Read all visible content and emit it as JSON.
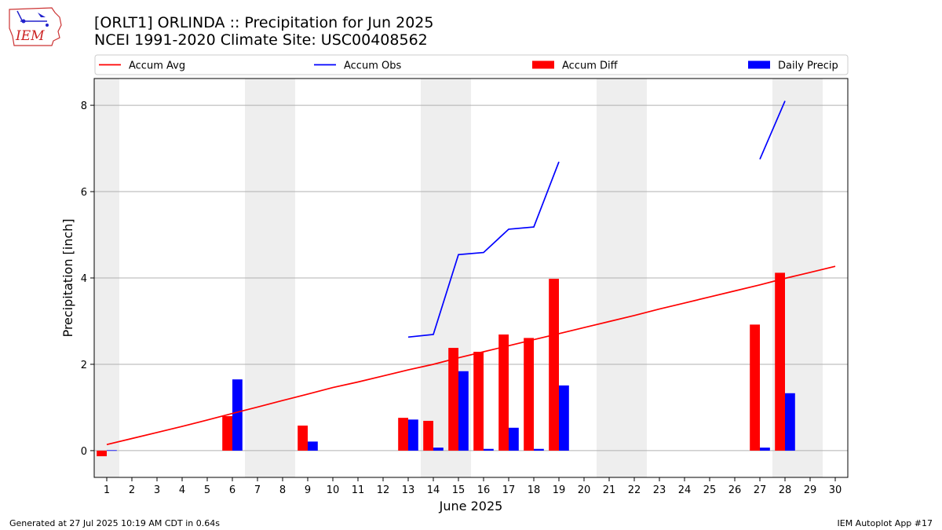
{
  "header": {
    "title_line1": "[ORLT1] ORLINDA :: Precipitation for Jun 2025",
    "title_line2": "NCEI 1991-2020 Climate Site: USC00408562"
  },
  "logo": {
    "text": "IEM",
    "icon": "iem-iowa-logo-icon"
  },
  "footer": {
    "generated": "Generated at 27 Jul 2025 10:19 AM CDT in 0.64s",
    "app": "IEM Autoplot App #17"
  },
  "chart_data": {
    "type": "bar",
    "xlabel": "June 2025",
    "ylabel": "Precipitation [inch]",
    "xlim": [
      0.5,
      30.5
    ],
    "ylim": [
      -0.62,
      8.62
    ],
    "x_ticks": [
      1,
      2,
      3,
      4,
      5,
      6,
      7,
      8,
      9,
      10,
      11,
      12,
      13,
      14,
      15,
      16,
      17,
      18,
      19,
      20,
      21,
      22,
      23,
      24,
      25,
      26,
      27,
      28,
      29,
      30
    ],
    "y_ticks": [
      0,
      2,
      4,
      6,
      8
    ],
    "grid": "y",
    "weekend_shading": [
      [
        0.5,
        1.5
      ],
      [
        6.5,
        8.5
      ],
      [
        13.5,
        15.5
      ],
      [
        20.5,
        22.5
      ],
      [
        27.5,
        29.5
      ]
    ],
    "legend": {
      "placement": "top",
      "ncol": 4
    },
    "colors": {
      "accum_avg": "#ff0000",
      "accum_obs": "#0000ff",
      "accum_diff": "#ff0000",
      "daily_precip": "#0000ff",
      "shade": "#eeeeee",
      "grid": "#b0b0b0"
    },
    "series": [
      {
        "name": "Accum Avg",
        "kind": "line",
        "x": [
          1,
          2,
          3,
          4,
          5,
          6,
          7,
          8,
          9,
          10,
          11,
          12,
          13,
          14,
          15,
          16,
          17,
          18,
          19,
          20,
          21,
          22,
          23,
          24,
          25,
          26,
          27,
          28,
          29,
          30
        ],
        "values": [
          0.14,
          0.28,
          0.42,
          0.56,
          0.71,
          0.86,
          1.01,
          1.16,
          1.31,
          1.46,
          1.59,
          1.73,
          1.87,
          2.0,
          2.15,
          2.29,
          2.43,
          2.57,
          2.71,
          2.85,
          2.99,
          3.13,
          3.28,
          3.42,
          3.56,
          3.7,
          3.84,
          3.99,
          4.13,
          4.27
        ]
      },
      {
        "name": "Accum Obs",
        "kind": "line",
        "segments": [
          {
            "x": [
              13,
              14,
              15,
              16,
              17,
              18,
              19
            ],
            "values": [
              2.63,
              2.69,
              4.54,
              4.59,
              5.13,
              5.18,
              6.69
            ]
          },
          {
            "x": [
              27,
              28
            ],
            "values": [
              6.75,
              8.1
            ]
          }
        ]
      },
      {
        "name": "Accum Diff",
        "kind": "bar",
        "x": [
          1,
          6,
          9,
          13,
          14,
          15,
          16,
          17,
          18,
          19,
          27,
          28
        ],
        "values": [
          -0.13,
          0.8,
          0.58,
          0.76,
          0.69,
          2.38,
          2.29,
          2.69,
          2.61,
          3.98,
          2.92,
          4.12
        ]
      },
      {
        "name": "Daily Precip",
        "kind": "bar",
        "x": [
          1,
          6,
          9,
          13,
          14,
          15,
          16,
          17,
          18,
          19,
          27,
          28
        ],
        "values": [
          0.01,
          1.65,
          0.21,
          0.72,
          0.07,
          1.84,
          0.04,
          0.53,
          0.04,
          1.51,
          0.07,
          1.33
        ]
      }
    ]
  }
}
